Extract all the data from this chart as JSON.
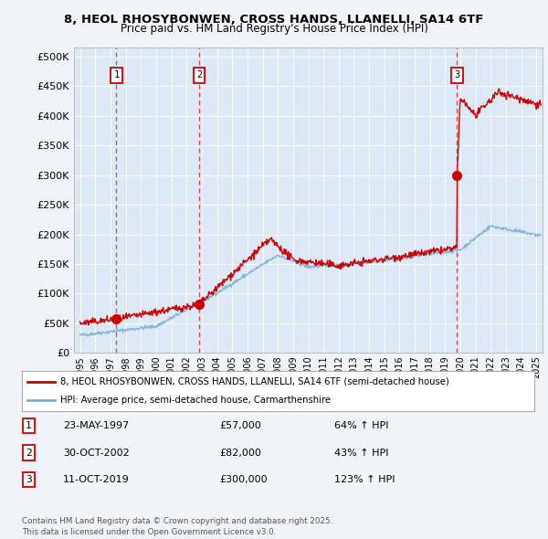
{
  "title1": "8, HEOL RHOSYBONWEN, CROSS HANDS, LLANELLI, SA14 6TF",
  "title2": "Price paid vs. HM Land Registry's House Price Index (HPI)",
  "yticks": [
    0,
    50000,
    100000,
    150000,
    200000,
    250000,
    300000,
    350000,
    400000,
    450000,
    500000
  ],
  "ytick_labels": [
    "£0",
    "£50K",
    "£100K",
    "£150K",
    "£200K",
    "£250K",
    "£300K",
    "£350K",
    "£400K",
    "£450K",
    "£500K"
  ],
  "ylim": [
    0,
    515000
  ],
  "xlim_start": 1994.6,
  "xlim_end": 2025.4,
  "purchases": [
    {
      "date": 1997.39,
      "price": 57000,
      "label": "1"
    },
    {
      "date": 2002.83,
      "price": 82000,
      "label": "2"
    },
    {
      "date": 2019.78,
      "price": 300000,
      "label": "3"
    }
  ],
  "sale_color": "#cc0000",
  "hpi_color": "#7ab0d4",
  "background_color": "#f0f4f8",
  "plot_bg_color": "#dce8f5",
  "legend_text1": "8, HEOL RHOSYBONWEN, CROSS HANDS, LLANELLI, SA14 6TF (semi-detached house)",
  "legend_text2": "HPI: Average price, semi-detached house, Carmarthenshire",
  "table_rows": [
    {
      "num": "1",
      "date": "23-MAY-1997",
      "price": "£57,000",
      "hpi": "64% ↑ HPI"
    },
    {
      "num": "2",
      "date": "30-OCT-2002",
      "price": "£82,000",
      "hpi": "43% ↑ HPI"
    },
    {
      "num": "3",
      "date": "11-OCT-2019",
      "price": "£300,000",
      "hpi": "123% ↑ HPI"
    }
  ],
  "footer": "Contains HM Land Registry data © Crown copyright and database right 2025.\nThis data is licensed under the Open Government Licence v3.0."
}
